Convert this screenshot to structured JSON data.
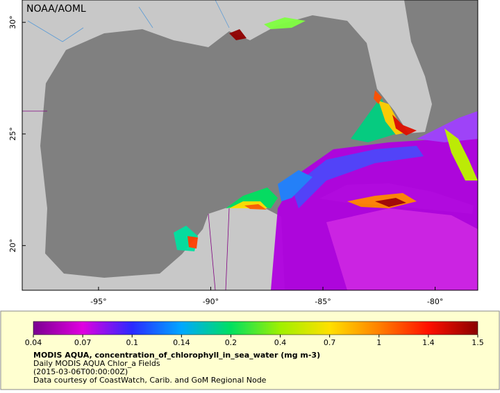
{
  "map": {
    "title": "NOAA/AOML",
    "xlim": [
      -98.4,
      -78.1
    ],
    "ylim": [
      18.0,
      31.0
    ],
    "xticks": [
      {
        "value": -95,
        "label": "-95°"
      },
      {
        "value": -90,
        "label": "-90°"
      },
      {
        "value": -85,
        "label": "-85°"
      },
      {
        "value": -80,
        "label": "-80°"
      }
    ],
    "yticks": [
      {
        "value": 20,
        "label": "20°"
      },
      {
        "value": 25,
        "label": "25°"
      },
      {
        "value": 30,
        "label": "30°"
      }
    ]
  },
  "colorbar": {
    "ticks": [
      0.04,
      0.07,
      0.1,
      0.14,
      0.2,
      0.4,
      0.7,
      1,
      1.4,
      1.5
    ],
    "colors": [
      "#7a0090",
      "#e000e0",
      "#2a2aff",
      "#00a8ff",
      "#00e060",
      "#a0f000",
      "#ffe000",
      "#ff8000",
      "#ff1000",
      "#8a0000"
    ]
  },
  "caption": {
    "heading": "MODIS AQUA, concentration_of_chlorophyll_in_sea_water (mg m-3)",
    "lines": [
      "Daily MODIS AQUA Chlor_a Fields",
      "(2015-03-06T00:00:00Z)",
      "Data courtesy of CoastWatch, Carib. and GoM Regional Node"
    ]
  }
}
